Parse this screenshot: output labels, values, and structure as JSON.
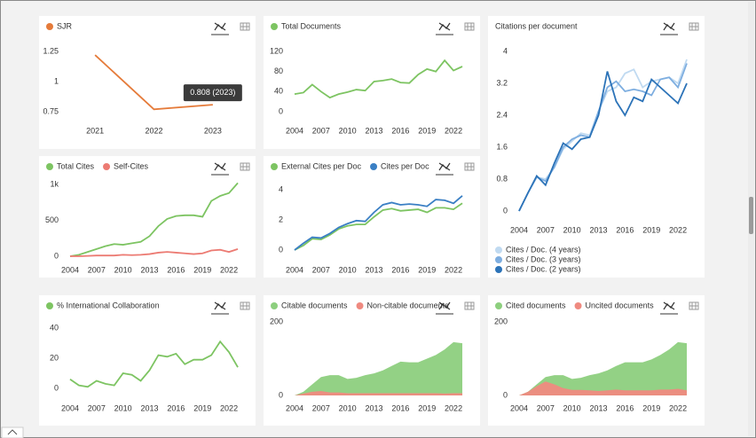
{
  "chart_data": [
    {
      "type": "line",
      "legend": "top",
      "annotation": "0.808 (2023)",
      "x": [
        2021,
        2022,
        2023
      ],
      "xlim": [
        2020.5,
        2023.5
      ],
      "xticks": [
        2021,
        2022,
        2023
      ],
      "ylim": [
        0.75,
        1.25
      ],
      "yticks": [
        0.75,
        1,
        1.25
      ],
      "series": [
        {
          "name": "SJR",
          "color": "#e57b3a",
          "values": [
            1.22,
            0.77,
            0.808
          ]
        }
      ]
    },
    {
      "type": "line",
      "legend": "top",
      "x": [
        2004,
        2005,
        2006,
        2007,
        2008,
        2009,
        2010,
        2011,
        2012,
        2013,
        2014,
        2015,
        2016,
        2017,
        2018,
        2019,
        2020,
        2021,
        2022,
        2023
      ],
      "xlim": [
        2003.5,
        2023.5
      ],
      "xticks": [
        2004,
        2007,
        2010,
        2013,
        2016,
        2019,
        2022
      ],
      "ylim": [
        0,
        120
      ],
      "yticks": [
        0,
        40,
        80,
        120
      ],
      "series": [
        {
          "name": "Total Documents",
          "color": "#7dc462",
          "values": [
            35,
            38,
            54,
            40,
            28,
            35,
            39,
            44,
            42,
            60,
            62,
            65,
            58,
            57,
            74,
            85,
            80,
            102,
            82,
            90
          ]
        }
      ]
    },
    {
      "type": "line",
      "legend": "bottom",
      "title": "Citations per document",
      "x": [
        2004,
        2005,
        2006,
        2007,
        2008,
        2009,
        2010,
        2011,
        2012,
        2013,
        2014,
        2015,
        2016,
        2017,
        2018,
        2019,
        2020,
        2021,
        2022,
        2023
      ],
      "xlim": [
        2003.5,
        2023.5
      ],
      "xticks": [
        2004,
        2007,
        2010,
        2013,
        2016,
        2019,
        2022
      ],
      "ylim": [
        0,
        4
      ],
      "yticks": [
        0,
        0.8,
        1.6,
        2.4,
        3.2,
        4
      ],
      "series": [
        {
          "name": "Cites / Doc. (4 years)",
          "color": "#c0daf1",
          "values": [
            0,
            0.45,
            0.85,
            0.8,
            1.1,
            1.55,
            1.75,
            1.95,
            1.9,
            2.5,
            3.0,
            3.1,
            3.45,
            3.55,
            3.1,
            3.25,
            3.3,
            3.35,
            3.2,
            3.8
          ]
        },
        {
          "name": "Cites / Doc. (3 years)",
          "color": "#7eaee0",
          "values": [
            0,
            0.45,
            0.85,
            0.75,
            1.1,
            1.6,
            1.8,
            1.9,
            1.85,
            2.5,
            3.1,
            3.25,
            3.0,
            3.05,
            3.0,
            2.9,
            3.3,
            3.35,
            3.1,
            3.7
          ]
        },
        {
          "name": "Cites / Doc. (2 years)",
          "color": "#2c73b8",
          "values": [
            0,
            0.45,
            0.88,
            0.65,
            1.2,
            1.7,
            1.55,
            1.8,
            1.85,
            2.4,
            3.5,
            2.75,
            2.4,
            2.85,
            2.75,
            3.3,
            3.1,
            2.9,
            2.7,
            3.2
          ]
        }
      ]
    },
    {
      "type": "line",
      "legend": "top",
      "x": [
        2004,
        2005,
        2006,
        2007,
        2008,
        2009,
        2010,
        2011,
        2012,
        2013,
        2014,
        2015,
        2016,
        2017,
        2018,
        2019,
        2020,
        2021,
        2022,
        2023
      ],
      "xlim": [
        2003.5,
        2023.5
      ],
      "xticks": [
        2004,
        2007,
        2010,
        2013,
        2016,
        2019,
        2022
      ],
      "ylim": [
        0,
        1000
      ],
      "yticks": [
        0,
        500,
        {
          "value": 1000,
          "label": "1k"
        }
      ],
      "series": [
        {
          "name": "Total Cites",
          "color": "#7dc462",
          "values": [
            0,
            20,
            60,
            100,
            140,
            170,
            160,
            180,
            200,
            280,
            420,
            520,
            560,
            570,
            570,
            550,
            770,
            840,
            880,
            1020
          ]
        },
        {
          "name": "Self-Cites",
          "color": "#ec7b73",
          "values": [
            0,
            0,
            5,
            10,
            10,
            10,
            20,
            15,
            20,
            30,
            50,
            60,
            50,
            40,
            30,
            40,
            80,
            90,
            60,
            100
          ]
        }
      ]
    },
    {
      "type": "line",
      "legend": "top",
      "x": [
        2004,
        2005,
        2006,
        2007,
        2008,
        2009,
        2010,
        2011,
        2012,
        2013,
        2014,
        2015,
        2016,
        2017,
        2018,
        2019,
        2020,
        2021,
        2022,
        2023
      ],
      "xlim": [
        2003.5,
        2023.5
      ],
      "xticks": [
        2004,
        2007,
        2010,
        2013,
        2016,
        2019,
        2022
      ],
      "ylim": [
        0,
        4
      ],
      "yticks": [
        0,
        2,
        4
      ],
      "series": [
        {
          "name": "External Cites per Doc",
          "color": "#7dc462",
          "values": [
            0,
            0.3,
            0.75,
            0.7,
            1.0,
            1.4,
            1.6,
            1.7,
            1.7,
            2.2,
            2.65,
            2.75,
            2.6,
            2.65,
            2.7,
            2.5,
            2.8,
            2.8,
            2.7,
            3.1
          ]
        },
        {
          "name": "Cites per Doc",
          "color": "#3a7fc4",
          "values": [
            0,
            0.45,
            0.85,
            0.8,
            1.1,
            1.5,
            1.75,
            1.95,
            1.9,
            2.5,
            3.0,
            3.15,
            3.0,
            3.05,
            3.0,
            2.9,
            3.35,
            3.3,
            3.1,
            3.6
          ]
        }
      ]
    },
    {
      "type": "line",
      "legend": "top",
      "x": [
        2004,
        2005,
        2006,
        2007,
        2008,
        2009,
        2010,
        2011,
        2012,
        2013,
        2014,
        2015,
        2016,
        2017,
        2018,
        2019,
        2020,
        2021,
        2022,
        2023
      ],
      "xlim": [
        2003.5,
        2023.5
      ],
      "xticks": [
        2004,
        2007,
        2010,
        2013,
        2016,
        2019,
        2022
      ],
      "ylim": [
        0,
        40
      ],
      "yticks": [
        0,
        20,
        40
      ],
      "series": [
        {
          "name": "% International Collaboration",
          "color": "#7dc462",
          "values": [
            6,
            2,
            1,
            5,
            3,
            2,
            10,
            9,
            5,
            12,
            22,
            21,
            23,
            16,
            19,
            19,
            22,
            31,
            24,
            14
          ]
        }
      ]
    },
    {
      "type": "area",
      "legend": "top",
      "x": [
        2004,
        2005,
        2006,
        2007,
        2008,
        2009,
        2010,
        2011,
        2012,
        2013,
        2014,
        2015,
        2016,
        2017,
        2018,
        2019,
        2020,
        2021,
        2022,
        2023
      ],
      "xlim": [
        2003.5,
        2023.5
      ],
      "xticks": [
        2004,
        2007,
        2010,
        2013,
        2016,
        2019,
        2022
      ],
      "ylim": [
        0,
        200
      ],
      "yticks": [
        0,
        200
      ],
      "series": [
        {
          "name": "Citable documents",
          "color": "#8dcf7e",
          "values": [
            0,
            10,
            30,
            50,
            55,
            55,
            45,
            48,
            55,
            60,
            68,
            80,
            92,
            90,
            90,
            100,
            110,
            125,
            145,
            142
          ]
        },
        {
          "name": "Non-citable documents",
          "color": "#ef8a80",
          "values": [
            0,
            5,
            10,
            12,
            8,
            8,
            6,
            6,
            6,
            6,
            6,
            6,
            6,
            6,
            6,
            6,
            6,
            5,
            6,
            6
          ]
        }
      ]
    },
    {
      "type": "area",
      "legend": "top",
      "x": [
        2004,
        2005,
        2006,
        2007,
        2008,
        2009,
        2010,
        2011,
        2012,
        2013,
        2014,
        2015,
        2016,
        2017,
        2018,
        2019,
        2020,
        2021,
        2022,
        2023
      ],
      "xlim": [
        2003.5,
        2023.5
      ],
      "xticks": [
        2004,
        2007,
        2010,
        2013,
        2016,
        2019,
        2022
      ],
      "ylim": [
        0,
        200
      ],
      "yticks": [
        0,
        200
      ],
      "series": [
        {
          "name": "Cited documents",
          "color": "#8dcf7e",
          "values": [
            0,
            10,
            30,
            50,
            55,
            55,
            45,
            48,
            55,
            60,
            68,
            80,
            90,
            90,
            90,
            98,
            110,
            125,
            145,
            142
          ]
        },
        {
          "name": "Uncited documents",
          "color": "#ef8a80",
          "values": [
            0,
            10,
            25,
            38,
            30,
            20,
            15,
            15,
            14,
            12,
            14,
            16,
            14,
            14,
            14,
            14,
            16,
            16,
            18,
            14
          ]
        }
      ]
    }
  ]
}
